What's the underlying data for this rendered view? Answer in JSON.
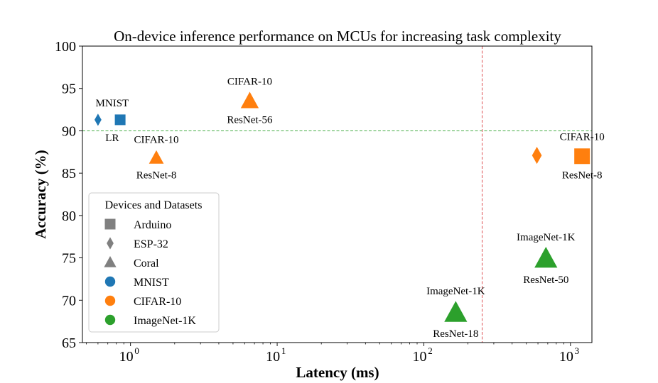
{
  "chart_data": {
    "type": "scatter",
    "title": "On-device inference performance on MCUs for increasing task complexity",
    "xlabel": "Latency (ms)",
    "ylabel": "Accuracy (%)",
    "xscale": "log",
    "xlim": [
      0.47,
      1400
    ],
    "ylim": [
      65,
      100
    ],
    "x_ticks": [
      {
        "base": "10",
        "exp": "0",
        "value": 1
      },
      {
        "base": "10",
        "exp": "1",
        "value": 10
      },
      {
        "base": "10",
        "exp": "2",
        "value": 100
      },
      {
        "base": "10",
        "exp": "3",
        "value": 1000
      }
    ],
    "y_ticks": [
      65,
      70,
      75,
      80,
      85,
      90,
      95,
      100
    ],
    "reference_lines": [
      {
        "orientation": "horizontal",
        "value": 90,
        "color": "#2ca02c",
        "style": "dashed"
      },
      {
        "orientation": "vertical",
        "value": 250,
        "color": "#d62728",
        "style": "dashed"
      }
    ],
    "colors": {
      "MNIST": "#1f77b4",
      "CIFAR-10": "#ff7f0e",
      "ImageNet-1K": "#2ca02c"
    },
    "points": [
      {
        "device": "ESP-32",
        "dataset": "MNIST",
        "x": 0.6,
        "y": 91.3,
        "label_above": "",
        "label_below": ""
      },
      {
        "device": "Arduino",
        "dataset": "MNIST",
        "x": 0.85,
        "y": 91.3,
        "label_above": "",
        "label_below": ""
      },
      {
        "device": "Coral",
        "dataset": "CIFAR-10",
        "x": 1.5,
        "y": 86.8,
        "label_above": "CIFAR-10",
        "label_below": "ResNet-8"
      },
      {
        "device": "Coral",
        "dataset": "CIFAR-10",
        "x": 6.5,
        "y": 93.5,
        "label_above": "CIFAR-10",
        "label_below": "ResNet-56"
      },
      {
        "device": "Coral",
        "dataset": "ImageNet-1K",
        "x": 165,
        "y": 68.5,
        "label_above": "ImageNet-1K",
        "label_below": "ResNet-18"
      },
      {
        "device": "ESP-32",
        "dataset": "CIFAR-10",
        "x": 590,
        "y": 87.1,
        "label_above": "",
        "label_below": ""
      },
      {
        "device": "Arduino",
        "dataset": "CIFAR-10",
        "x": 1200,
        "y": 87.0,
        "label_above": "CIFAR-10",
        "label_below": "ResNet-8"
      },
      {
        "device": "Coral",
        "dataset": "ImageNet-1K",
        "x": 680,
        "y": 74.9,
        "label_above": "ImageNet-1K",
        "label_below": "ResNet-50"
      }
    ],
    "group_labels": [
      {
        "text": "MNIST",
        "x": 0.75,
        "y": 93.3
      },
      {
        "text": "LR",
        "x": 0.75,
        "y": 89.2
      }
    ],
    "legend": {
      "title": "Devices and Datasets",
      "placement": "lower-left",
      "entries": [
        {
          "label": "Arduino",
          "marker": "square",
          "color": "#808080"
        },
        {
          "label": "ESP-32",
          "marker": "diamond",
          "color": "#808080"
        },
        {
          "label": "Coral",
          "marker": "triangle",
          "color": "#808080"
        },
        {
          "label": "MNIST",
          "marker": "circle",
          "color": "#1f77b4"
        },
        {
          "label": "CIFAR-10",
          "marker": "circle",
          "color": "#ff7f0e"
        },
        {
          "label": "ImageNet-1K",
          "marker": "circle",
          "color": "#2ca02c"
        }
      ]
    }
  }
}
